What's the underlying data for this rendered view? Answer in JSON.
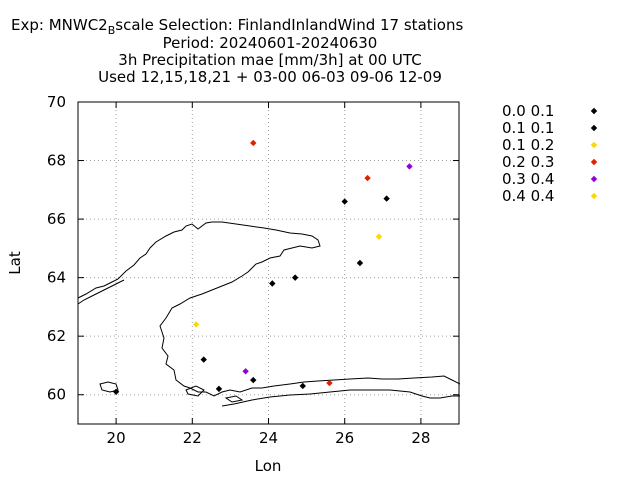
{
  "header": {
    "line1_prefix": "Exp: MNWC2",
    "line1_sub": "B",
    "line1_suffix": "scale   Selection: FinlandInlandWind     17 stations",
    "line2": "Period: 20240601-20240630",
    "line3": "3h Precipitation mae [mm/3h] at  00 UTC",
    "line4": "Used 12,15,18,21 + 03-00 06-03 09-06 12-09"
  },
  "chart_data": {
    "type": "scatter",
    "xlabel": "Lon",
    "ylabel": "Lat",
    "xlim": [
      19,
      29
    ],
    "ylim": [
      59,
      70
    ],
    "xticks": [
      20,
      22,
      24,
      26,
      28
    ],
    "yticks": [
      60,
      62,
      64,
      66,
      68,
      70
    ],
    "grid": true,
    "legend_placement": "right",
    "legend": [
      {
        "label": "0.0 0.1",
        "color": "#000000"
      },
      {
        "label": "0.1 0.1",
        "color": "#000000"
      },
      {
        "label": "0.1 0.2",
        "color": "#ffd700"
      },
      {
        "label": "0.2 0.3",
        "color": "#e02000"
      },
      {
        "label": "0.3 0.4",
        "color": "#9400d3"
      },
      {
        "label": "0.4 0.4",
        "color": "#ffd700"
      }
    ],
    "points": [
      {
        "lon": 23.6,
        "lat": 68.6,
        "color": "#e02000"
      },
      {
        "lon": 27.7,
        "lat": 67.8,
        "color": "#9400d3"
      },
      {
        "lon": 26.6,
        "lat": 67.4,
        "color": "#e02000"
      },
      {
        "lon": 27.1,
        "lat": 66.7,
        "color": "#000000"
      },
      {
        "lon": 26.0,
        "lat": 66.6,
        "color": "#000000"
      },
      {
        "lon": 26.9,
        "lat": 65.4,
        "color": "#ffd700"
      },
      {
        "lon": 26.4,
        "lat": 64.5,
        "color": "#000000"
      },
      {
        "lon": 24.7,
        "lat": 64.0,
        "color": "#000000"
      },
      {
        "lon": 24.1,
        "lat": 63.8,
        "color": "#000000"
      },
      {
        "lon": 22.1,
        "lat": 62.4,
        "color": "#ffd700"
      },
      {
        "lon": 22.3,
        "lat": 61.2,
        "color": "#000000"
      },
      {
        "lon": 23.4,
        "lat": 60.8,
        "color": "#9400d3"
      },
      {
        "lon": 23.6,
        "lat": 60.5,
        "color": "#000000"
      },
      {
        "lon": 24.9,
        "lat": 60.3,
        "color": "#000000"
      },
      {
        "lon": 25.6,
        "lat": 60.4,
        "color": "#e02000"
      },
      {
        "lon": 22.7,
        "lat": 60.2,
        "color": "#000000"
      },
      {
        "lon": 20.0,
        "lat": 60.1,
        "color": "#000000"
      }
    ]
  }
}
